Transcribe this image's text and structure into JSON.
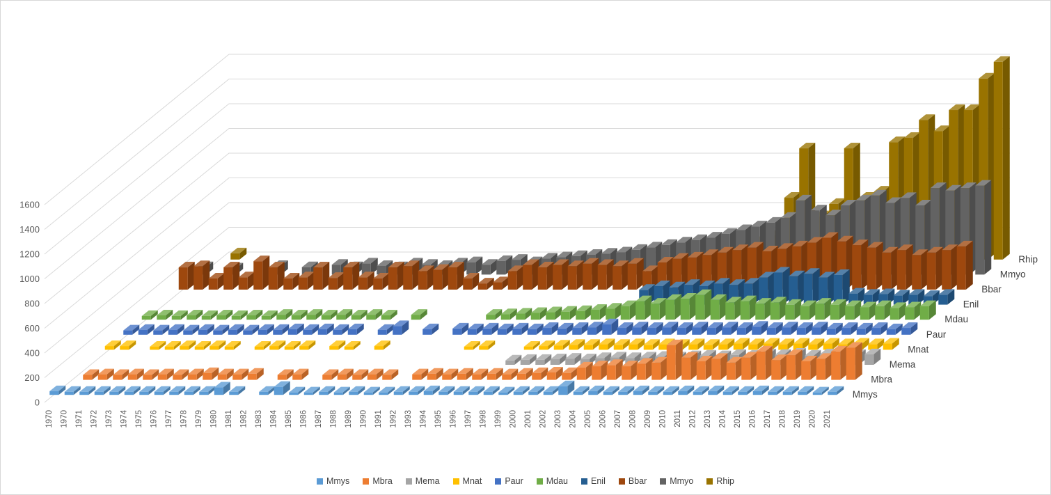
{
  "figure": {
    "background": "#FFFFFF",
    "border_color": "#D7D7D7",
    "grid_color": "#D9D9D9",
    "axis_label_color": "#595959",
    "series_label_color": "#404040"
  },
  "chart_data": {
    "type": "bar",
    "subtype": "3d-column",
    "title": "",
    "xlabel": "",
    "ylabel": "",
    "grid": true,
    "legend_position": "bottom",
    "value_axis": {
      "min": 0,
      "max": 1600,
      "step": 200,
      "ticks": [
        0,
        200,
        400,
        600,
        800,
        1000,
        1200,
        1400,
        1600
      ]
    },
    "categories": [
      "1970",
      "1970",
      "1971",
      "1972",
      "1973",
      "1974",
      "1975",
      "1976",
      "1977",
      "1978",
      "1979",
      "1980",
      "1981",
      "1982",
      "1983",
      "1984",
      "1985",
      "1986",
      "1987",
      "1988",
      "1989",
      "1990",
      "1991",
      "1992",
      "1993",
      "1994",
      "1995",
      "1996",
      "1997",
      "1998",
      "1999",
      "2000",
      "2001",
      "2002",
      "2003",
      "2004",
      "2005",
      "2006",
      "2007",
      "2008",
      "2009",
      "2010",
      "2011",
      "2012",
      "2013",
      "2014",
      "2015",
      "2016",
      "2017",
      "2018",
      "2019",
      "2020",
      "2021"
    ],
    "series": [
      {
        "name": "Mmys",
        "color": "#5B9BD5",
        "values": [
          30,
          25,
          25,
          25,
          25,
          25,
          25,
          25,
          25,
          25,
          25,
          60,
          25,
          0,
          25,
          65,
          20,
          20,
          25,
          20,
          25,
          20,
          20,
          25,
          25,
          30,
          25,
          25,
          25,
          25,
          20,
          25,
          25,
          25,
          70,
          25,
          30,
          25,
          25,
          30,
          25,
          25,
          30,
          25,
          30,
          25,
          25,
          30,
          25,
          25,
          25,
          20,
          25
        ]
      },
      {
        "name": "Mbra",
        "color": "#ED7D31",
        "values": [
          0,
          40,
          45,
          40,
          45,
          40,
          45,
          40,
          45,
          55,
          45,
          45,
          50,
          0,
          40,
          45,
          0,
          40,
          45,
          40,
          45,
          40,
          0,
          45,
          50,
          45,
          50,
          45,
          50,
          45,
          50,
          55,
          60,
          55,
          100,
          110,
          120,
          110,
          130,
          140,
          280,
          180,
          150,
          170,
          140,
          180,
          230,
          160,
          200,
          150,
          170,
          230,
          260
        ]
      },
      {
        "name": "Mema",
        "color": "#A5A5A5",
        "values": [
          0,
          0,
          0,
          0,
          0,
          0,
          0,
          0,
          0,
          0,
          0,
          0,
          0,
          0,
          0,
          0,
          0,
          0,
          0,
          0,
          0,
          0,
          0,
          0,
          0,
          0,
          0,
          0,
          35,
          40,
          40,
          45,
          50,
          45,
          55,
          60,
          55,
          60,
          65,
          60,
          70,
          75,
          70,
          80,
          75,
          85,
          80,
          90,
          75,
          85,
          70,
          80,
          85
        ]
      },
      {
        "name": "Mnat",
        "color": "#FFC000",
        "values": [
          30,
          30,
          0,
          25,
          25,
          30,
          25,
          30,
          25,
          0,
          25,
          30,
          25,
          30,
          0,
          30,
          25,
          0,
          30,
          0,
          0,
          0,
          0,
          0,
          25,
          30,
          0,
          0,
          25,
          30,
          35,
          40,
          40,
          45,
          40,
          45,
          40,
          45,
          40,
          45,
          40,
          45,
          50,
          45,
          50,
          45,
          50,
          45,
          50,
          45,
          50,
          45,
          50
        ]
      },
      {
        "name": "Paur",
        "color": "#4472C4",
        "values": [
          35,
          40,
          35,
          40,
          35,
          40,
          35,
          40,
          35,
          40,
          40,
          45,
          40,
          45,
          40,
          45,
          0,
          40,
          70,
          0,
          45,
          0,
          50,
          45,
          50,
          45,
          50,
          45,
          55,
          50,
          55,
          60,
          85,
          55,
          60,
          55,
          60,
          55,
          60,
          55,
          60,
          55,
          65,
          55,
          60,
          55,
          60,
          50,
          55,
          50,
          55,
          45,
          55
        ]
      },
      {
        "name": "Mdau",
        "color": "#70AD47",
        "values": [
          30,
          35,
          30,
          35,
          30,
          35,
          30,
          35,
          30,
          40,
          35,
          40,
          35,
          40,
          35,
          40,
          35,
          0,
          40,
          0,
          0,
          0,
          0,
          40,
          45,
          50,
          55,
          60,
          65,
          70,
          80,
          90,
          110,
          150,
          130,
          160,
          170,
          200,
          160,
          140,
          150,
          130,
          140,
          120,
          110,
          130,
          120,
          110,
          100,
          110,
          95,
          100,
          110
        ]
      },
      {
        "name": "Enil",
        "color": "#255E91",
        "values": [
          0,
          0,
          0,
          0,
          0,
          0,
          0,
          0,
          0,
          0,
          0,
          0,
          0,
          0,
          0,
          0,
          0,
          0,
          0,
          0,
          0,
          0,
          0,
          0,
          0,
          0,
          0,
          0,
          0,
          0,
          0,
          0,
          120,
          150,
          140,
          160,
          150,
          170,
          160,
          170,
          220,
          260,
          230,
          250,
          220,
          240,
          90,
          80,
          85,
          75,
          80,
          70,
          80
        ]
      },
      {
        "name": "Bbar",
        "color": "#9E480E",
        "values": [
          180,
          190,
          90,
          180,
          100,
          230,
          180,
          90,
          100,
          180,
          95,
          180,
          100,
          90,
          180,
          190,
          150,
          160,
          180,
          90,
          50,
          60,
          150,
          200,
          180,
          200,
          190,
          210,
          200,
          190,
          210,
          150,
          220,
          250,
          260,
          280,
          300,
          320,
          340,
          310,
          330,
          350,
          380,
          420,
          390,
          360,
          340,
          300,
          320,
          280,
          300,
          320,
          350
        ]
      },
      {
        "name": "Mmyo",
        "color": "#636363",
        "values": [
          60,
          0,
          50,
          0,
          0,
          70,
          0,
          60,
          0,
          80,
          60,
          90,
          70,
          60,
          90,
          80,
          70,
          90,
          100,
          80,
          110,
          120,
          100,
          130,
          140,
          150,
          160,
          170,
          180,
          200,
          220,
          240,
          260,
          280,
          300,
          330,
          360,
          390,
          420,
          460,
          600,
          520,
          480,
          560,
          600,
          640,
          580,
          620,
          560,
          700,
          680,
          700,
          720
        ]
      },
      {
        "name": "Rhip",
        "color": "#997300",
        "values": [
          0,
          50,
          0,
          0,
          0,
          0,
          0,
          0,
          0,
          0,
          0,
          0,
          0,
          0,
          0,
          0,
          0,
          0,
          0,
          0,
          0,
          0,
          0,
          0,
          0,
          0,
          0,
          0,
          0,
          0,
          0,
          0,
          0,
          0,
          0,
          100,
          150,
          200,
          500,
          900,
          350,
          450,
          900,
          500,
          550,
          950,
          985,
          1130,
          1040,
          1210,
          1210,
          1465,
          1600
        ]
      }
    ]
  }
}
